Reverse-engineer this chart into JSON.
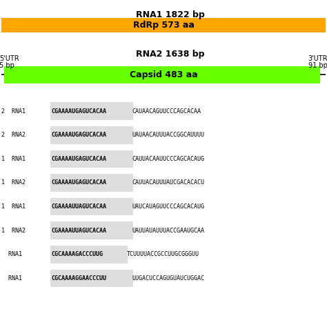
{
  "rna1_label": "RNA1 1822 bp",
  "rna2_label": "RNA2 1638 bp",
  "rdrp_label": "RdRp 573 aa",
  "capsid_label": "Capsid 483 aa",
  "utr5_label": "5'UTR\n5 bp",
  "utr3_label": "3'UTR\n91 bp",
  "rdrp_color": "#FFA500",
  "capsid_color": "#66FF00",
  "line_color": "#000000",
  "bg_color": "#FFFFFF",
  "seq_lines": [
    {
      "prefix": "2  RNA1",
      "highlight": "CGAAAAUGAGUCACAA",
      "rest": "CAUAACAGUUCCCAGCACAA"
    },
    {
      "prefix": "2  RNA2",
      "highlight": "CGAAAAUGAGUCACAA",
      "rest": "UAUAACAUUUACCGGCAUUUU"
    },
    {
      "prefix": "1  RNA1",
      "highlight": "CGAAAAUGAGUCACAA",
      "rest": "CAUUACAAUUCCCAGCACAUG"
    },
    {
      "prefix": "1  RNA2",
      "highlight": "CGAAAAUGAGUCACAA",
      "rest": "CAUUACAUUUAUCGACACACU"
    },
    {
      "prefix": "1  RNA1",
      "highlight": "CGAAAAUUAGUCACAA",
      "rest": "UAUCAUAGUUCCCAGCACAUG"
    },
    {
      "prefix": "1  RNA2",
      "highlight": "CGAAAAUUAGUCACAA",
      "rest": "UAUUAUAUUUACCGAAUGCAA"
    },
    {
      "prefix": "  RNA1",
      "highlight": "CGCAAAAGACCCUUG",
      "rest": "TCUUUUACCGCCUUGCGGGUU"
    },
    {
      "prefix": "  RNA1",
      "highlight": "CGCAAAAGGAACCCUU",
      "rest": "UUGACUCCAGUGUAUCUGGAC"
    }
  ]
}
